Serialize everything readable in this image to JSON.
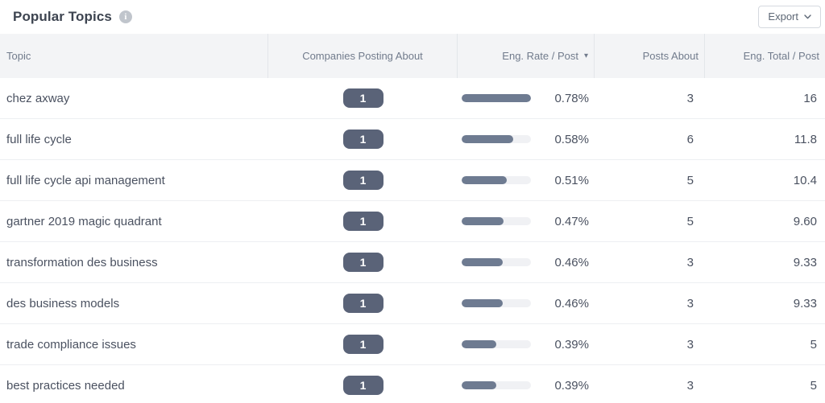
{
  "header": {
    "title": "Popular Topics",
    "export_label": "Export"
  },
  "icons": {
    "info": "i",
    "sort_desc": "▾"
  },
  "table": {
    "columns": [
      {
        "label": "Topic"
      },
      {
        "label": "Companies Posting About"
      },
      {
        "label": "Eng. Rate / Post",
        "sorted": "desc"
      },
      {
        "label": "Posts About"
      },
      {
        "label": "Eng. Total / Post"
      }
    ],
    "rows": [
      {
        "topic": "chez axway",
        "companies": "1",
        "eng_rate": "0.78%",
        "bar_pct": 100,
        "posts": "3",
        "eng_total": "16"
      },
      {
        "topic": "full life cycle",
        "companies": "1",
        "eng_rate": "0.58%",
        "bar_pct": 74.4,
        "posts": "6",
        "eng_total": "11.8"
      },
      {
        "topic": "full life cycle api management",
        "companies": "1",
        "eng_rate": "0.51%",
        "bar_pct": 65.4,
        "posts": "5",
        "eng_total": "10.4"
      },
      {
        "topic": "gartner 2019 magic quadrant",
        "companies": "1",
        "eng_rate": "0.47%",
        "bar_pct": 60.3,
        "posts": "5",
        "eng_total": "9.60"
      },
      {
        "topic": "transformation des business",
        "companies": "1",
        "eng_rate": "0.46%",
        "bar_pct": 59,
        "posts": "3",
        "eng_total": "9.33"
      },
      {
        "topic": "des business models",
        "companies": "1",
        "eng_rate": "0.46%",
        "bar_pct": 59,
        "posts": "3",
        "eng_total": "9.33"
      },
      {
        "topic": "trade compliance issues",
        "companies": "1",
        "eng_rate": "0.39%",
        "bar_pct": 50,
        "posts": "3",
        "eng_total": "5"
      },
      {
        "topic": "best practices needed",
        "companies": "1",
        "eng_rate": "0.39%",
        "bar_pct": 50,
        "posts": "3",
        "eng_total": "5"
      }
    ]
  },
  "colors": {
    "badge_bg": "#5a6378",
    "badge_text": "#ffffff",
    "bar_fill": "#6e7b91",
    "bar_track": "#f0f1f4",
    "header_bg": "#f3f4f6",
    "header_text": "#717b8c",
    "body_text": "#4a5160",
    "title_text": "#3d4450",
    "divider": "#e3e6ea",
    "row_border": "#edeff2",
    "button_border": "#d5d9df",
    "button_text": "#5d6775",
    "info_icon_bg": "#c0c5cc"
  }
}
